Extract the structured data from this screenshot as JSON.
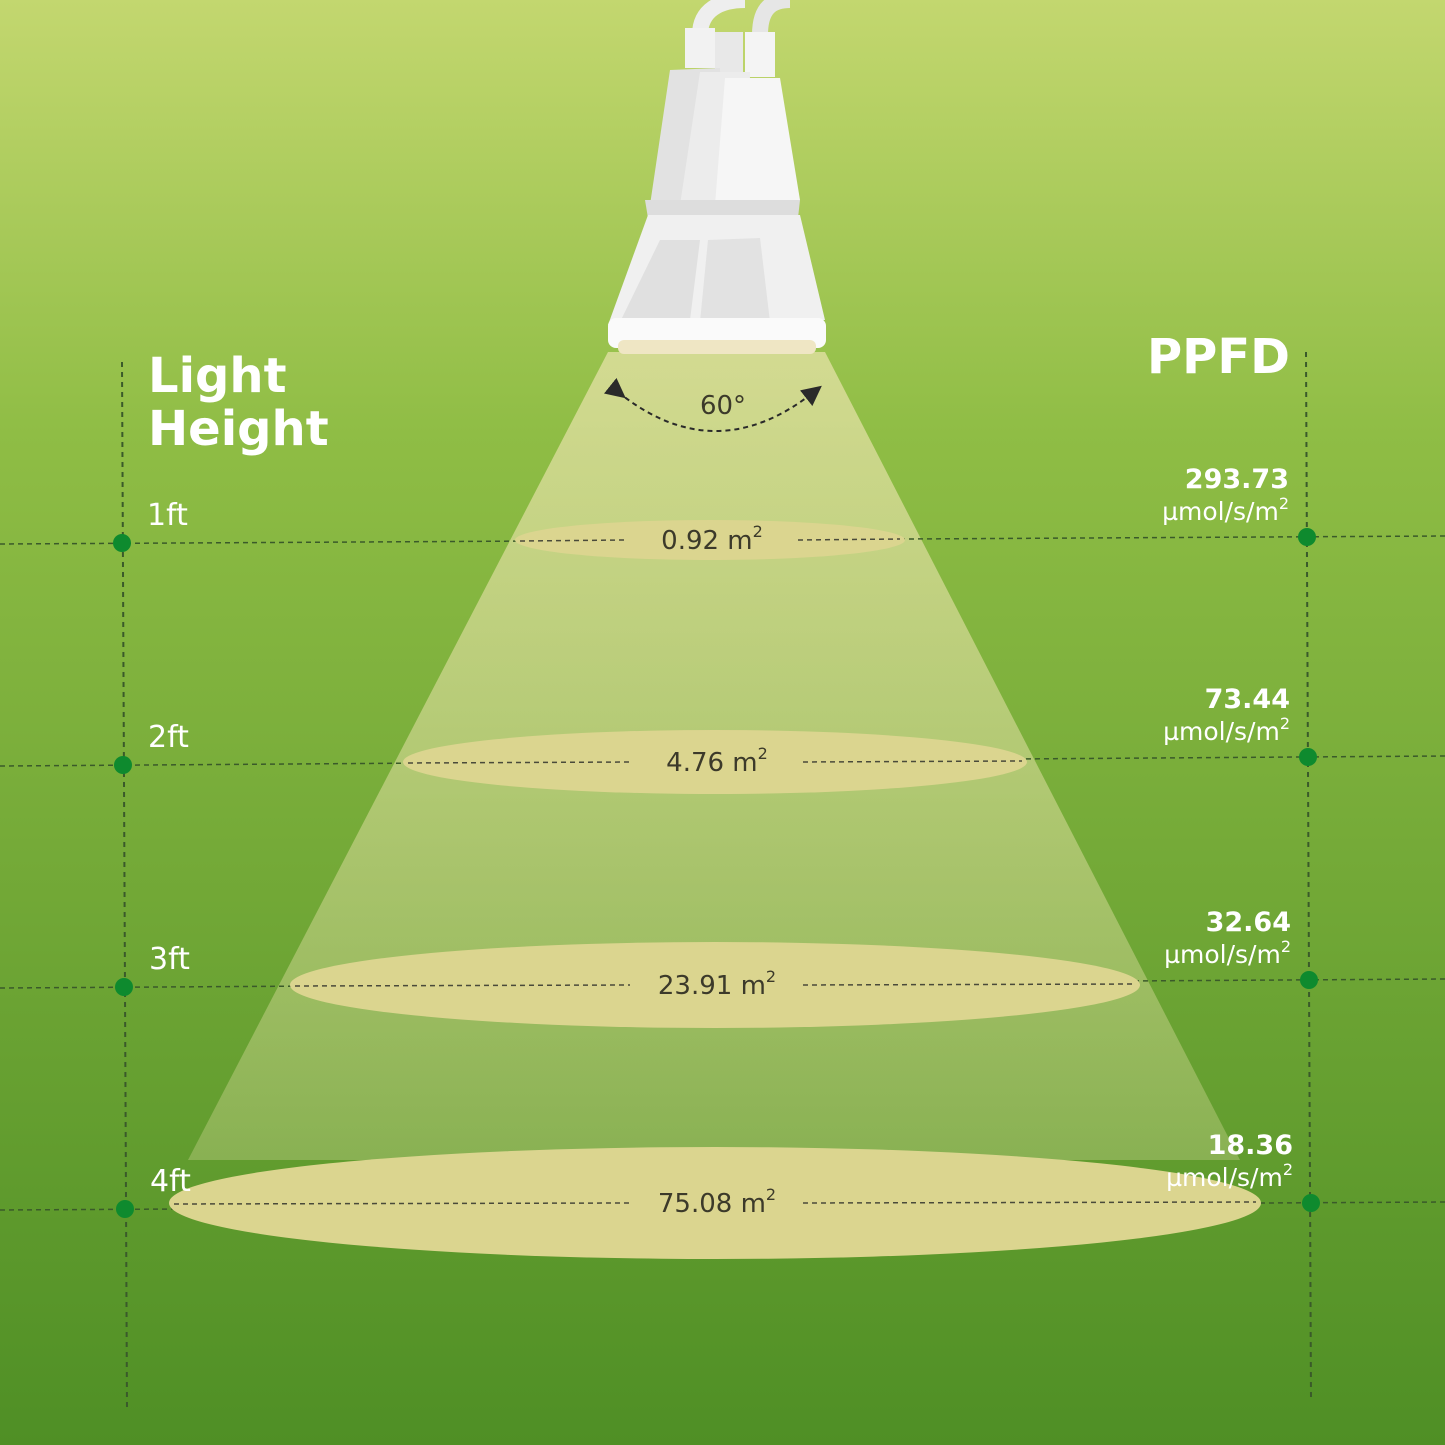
{
  "left_title": [
    "Light",
    "Height"
  ],
  "right_title": "PPFD",
  "beam_angle": "60°",
  "unit_ppfd": "µmol/s/m",
  "unit_sup": "2",
  "area_unit": "m",
  "colors": {
    "bg_top": "#c3d76f",
    "bg_bottom": "#4f8f25",
    "dot": "#0e8a2e",
    "ellipse": "#d9d48e",
    "cone": "#e0dba0"
  },
  "rows": [
    {
      "height": "1ft",
      "area": "0.92",
      "ppfd": "293.73"
    },
    {
      "height": "2ft",
      "area": "4.76",
      "ppfd": "73.44"
    },
    {
      "height": "3ft",
      "area": "23.91",
      "ppfd": "32.64"
    },
    {
      "height": "4ft",
      "area": "75.08",
      "ppfd": "18.36"
    }
  ]
}
